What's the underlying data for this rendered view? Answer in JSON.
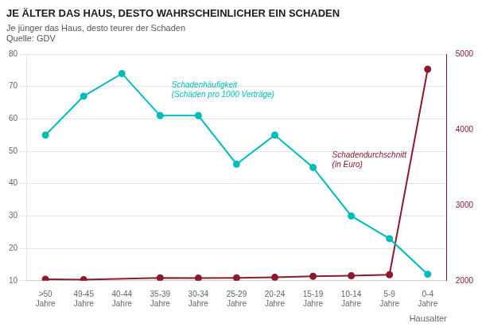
{
  "chart_data": {
    "type": "line",
    "title": "JE ÄLTER DAS HAUS, DESTO WAHRSCHEINLICHER EIN SCHADEN",
    "subtitle": "Je jünger das Haus, desto teurer der Schaden",
    "source": "Quelle: GDV",
    "x_label": "Hausalter",
    "categories": [
      ">50\nJahre",
      "49-45\nJahre",
      "40-44\nJahre",
      "35-39\nJahre",
      "30-34\nJahre",
      "25-29\nJahre",
      "20-24\nJahre",
      "15-19\nJahre",
      "10-14\nJahre",
      "5-9\nJahre",
      "0-4\nJahre"
    ],
    "series": [
      {
        "color": "#00BABA",
        "marker": "circle",
        "values": [
          55,
          67,
          74,
          61,
          61,
          46,
          55,
          45,
          30,
          23,
          12
        ]
      },
      {
        "color": "#8B1A2D",
        "marker": "circle",
        "axis": "y2",
        "values": [
          2020,
          2015,
          null,
          2037,
          2035,
          2037,
          2044,
          2059,
          2066,
          2079,
          4800
        ]
      }
    ],
    "ylim": [
      10,
      80
    ],
    "yticks": [
      10,
      20,
      30,
      40,
      50,
      60,
      70,
      80
    ],
    "y2lim": [
      2000,
      5000
    ],
    "y2ticks": [
      2000,
      3000,
      4000,
      5000
    ],
    "grid": true,
    "annotations": [
      {
        "text": "Schadenhäufigkeit\n(Schäden pro 1000 Verträge)",
        "x": 3.3,
        "y": 66,
        "axis": "y",
        "color": "#00BABA"
      },
      {
        "text": "Schadendurchschnitt\n(in Euro)",
        "x": 7.5,
        "y": 3600,
        "axis": "y2",
        "color": "#8B1A2D"
      }
    ]
  }
}
